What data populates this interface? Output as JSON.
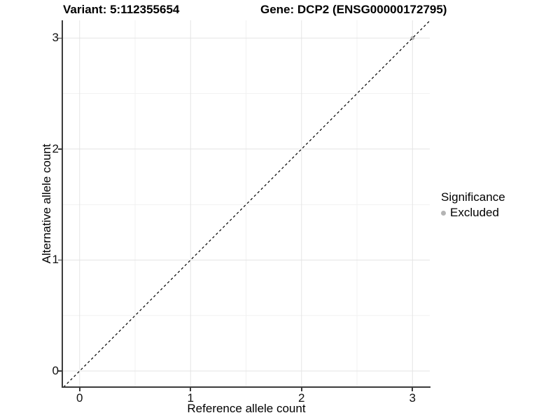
{
  "titles": {
    "variant": "Variant: 5:112355654",
    "gene": "Gene: DCP2 (ENSG00000172795)"
  },
  "legend": {
    "title": "Significance",
    "position": "right",
    "items": [
      {
        "label": "Excluded",
        "color": "#b4b4b4",
        "marker": "dot"
      }
    ]
  },
  "chart_data": {
    "type": "scatter",
    "title_left": "Variant: 5:112355654",
    "title_right": "Gene: DCP2 (ENSG00000172795)",
    "xlabel": "Reference allele count",
    "ylabel": "Alternative allele count",
    "xlim": [
      -0.15,
      3.156
    ],
    "ylim": [
      -0.145,
      3.16
    ],
    "x_ticks": [
      0,
      1,
      2,
      3
    ],
    "y_ticks": [
      0,
      1,
      2,
      3
    ],
    "x_minor_ticks": [
      0.5,
      1.5,
      2.5
    ],
    "y_minor_ticks": [
      0.5,
      1.5,
      2.5
    ],
    "grid": true,
    "legend_position": "right",
    "series": [
      {
        "name": "Excluded",
        "color": "#b4b4b4",
        "points": [
          {
            "x": 3,
            "y": 3
          }
        ]
      }
    ],
    "reference_line": {
      "type": "identity",
      "slope": 1,
      "intercept": 0,
      "style": "dashed",
      "color": "#000000"
    }
  },
  "colors": {
    "grid_major": "#e4e4e4",
    "grid_minor": "#f1f1f1",
    "axis": "#3c3c3c",
    "background": "#ffffff"
  }
}
